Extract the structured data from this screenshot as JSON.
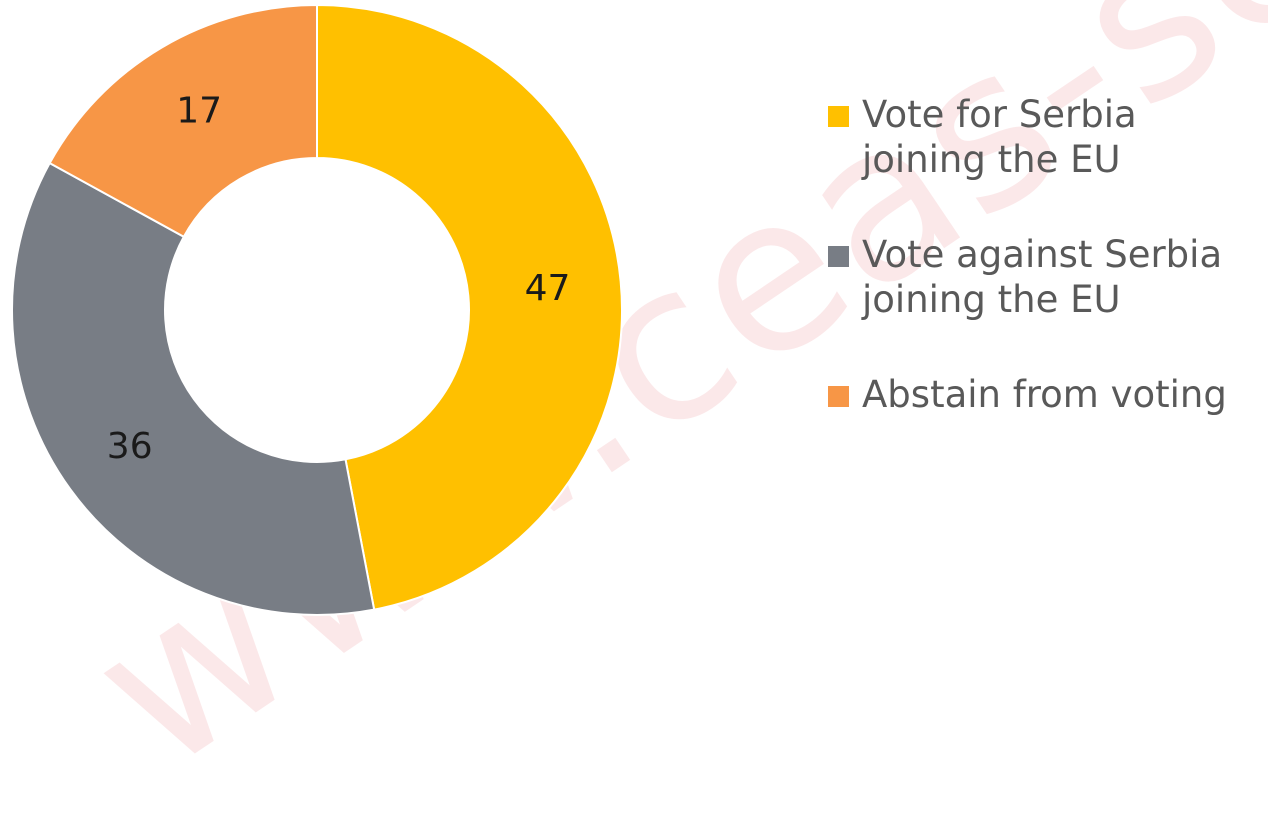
{
  "watermark": {
    "text": "www.ceas-serbia.org"
  },
  "chart_data": {
    "type": "pie",
    "variant": "donut",
    "categories": [
      "Vote for Serbia joining the EU",
      "Vote against Serbia joining the EU",
      "Abstain from voting"
    ],
    "values": [
      47,
      36,
      17
    ],
    "colors": [
      "#FFC000",
      "#787D85",
      "#F79646"
    ],
    "data_labels": [
      "47",
      "36",
      "17"
    ],
    "start_angle": "12 o'clock, clockwise",
    "legend_position": "right",
    "title": "",
    "xlabel": "",
    "ylabel": ""
  }
}
